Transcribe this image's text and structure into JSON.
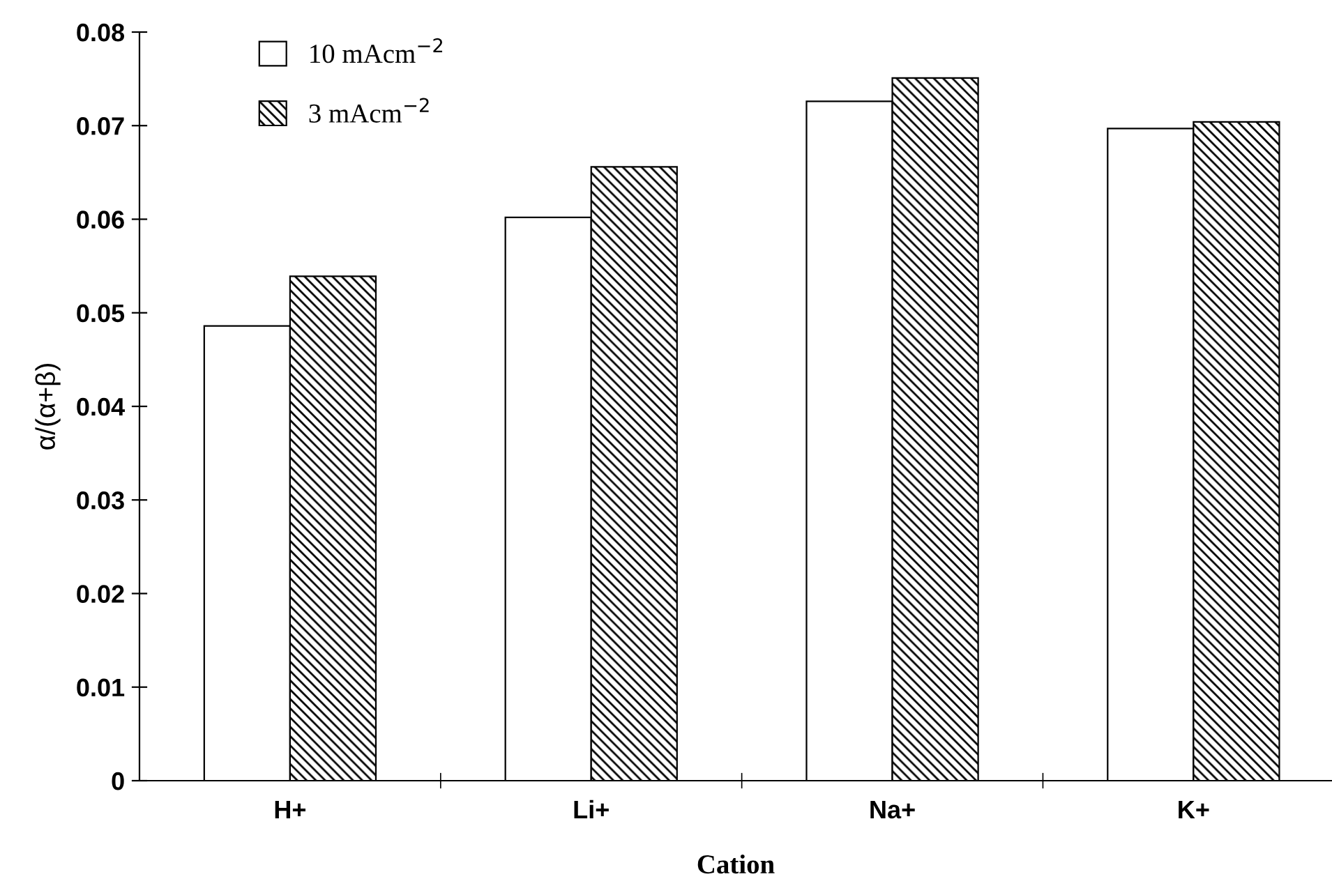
{
  "chart_data": {
    "type": "bar",
    "xlabel": "Cation",
    "ylabel": "α/(α+β)",
    "categories": [
      "H+",
      "Li+",
      "Na+",
      "K+"
    ],
    "series": [
      {
        "name": "10 mAcm$^{−2}$",
        "color": "#ffffff",
        "values": [
          0.0486,
          0.0602,
          0.0726,
          0.0697
        ]
      },
      {
        "name": "3 mAcm$^{−2}$",
        "color": "#000000",
        "values": [
          0.0539,
          0.0656,
          0.0751,
          0.0704
        ]
      }
    ],
    "ylim": [
      0,
      0.08
    ],
    "yticks": [
      0,
      0.01,
      0.02,
      0.03,
      0.04,
      0.05,
      0.06,
      0.07,
      0.08
    ],
    "grid": false,
    "legend": "top left"
  }
}
